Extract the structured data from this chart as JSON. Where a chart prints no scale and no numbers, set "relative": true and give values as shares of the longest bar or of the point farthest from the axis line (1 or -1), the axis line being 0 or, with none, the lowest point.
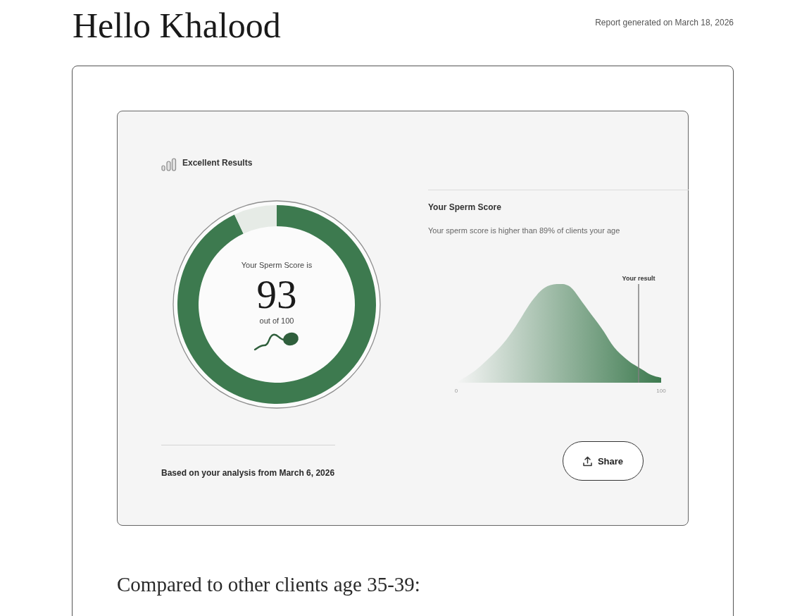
{
  "chart_data": [
    {
      "type": "other",
      "title": "Hello Khalood",
      "annotations": [
        "Report generated on March 18, 2026",
        "Compared to other clients age 35-39:"
      ]
    },
    {
      "type": "donut",
      "title": "Excellent Results",
      "categories": [
        null,
        null
      ],
      "values": [
        93,
        7
      ],
      "colors": [
        "#3d7a4f",
        "#e6ebe6"
      ],
      "value_labels": [
        "93",
        null
      ],
      "annotations": [
        "Your Sperm Score is",
        "out of 100",
        "Based on your analysis from March 6, 2026"
      ]
    },
    {
      "type": "area",
      "title": "Your Sperm Score",
      "subtitle": "Your sperm score is higher than 89% of clients your age",
      "x": [
        0,
        9,
        14,
        20,
        26,
        32,
        37,
        43,
        49,
        55,
        60,
        66,
        72,
        77,
        83,
        87,
        91,
        95,
        100
      ],
      "values": [
        0,
        0.12,
        0.21,
        0.33,
        0.48,
        0.67,
        0.83,
        0.96,
        1,
        0.98,
        0.86,
        0.69,
        0.52,
        0.36,
        0.24,
        0.18,
        0.13,
        0.08,
        0.05
      ],
      "color": "#3d7a4f",
      "relative": true,
      "xlim": [
        0,
        100
      ],
      "xticks": [
        0,
        100
      ],
      "ref_lines": [
        {
          "axis": "x",
          "value": 89,
          "label": "Your result",
          "color": "#808080"
        }
      ],
      "annotations": [
        "Share"
      ]
    }
  ]
}
